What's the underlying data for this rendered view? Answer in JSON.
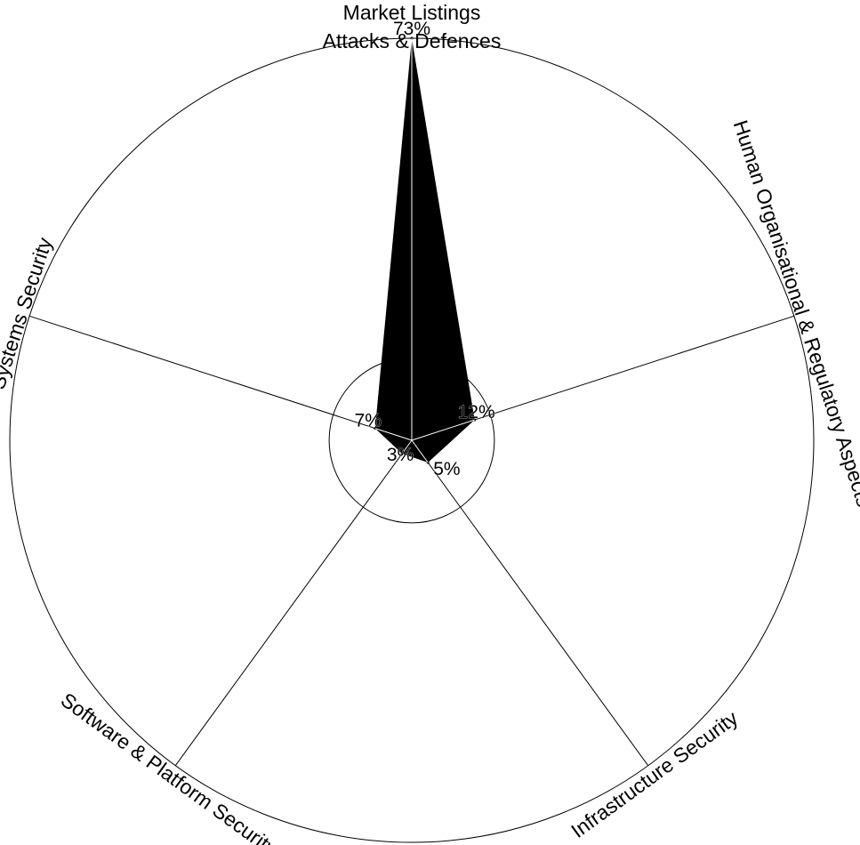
{
  "chart_data": {
    "type": "radar",
    "title_lines": [
      "Market Listings",
      "Attacks & Defences"
    ],
    "categories": [
      "Attacks & Defences",
      "Human Organisational & Regulatory Aspects",
      "Infrastructure Security",
      "Software & Platform Security",
      "Systems Security"
    ],
    "series": [
      {
        "values": [
          73,
          12,
          5,
          3,
          7
        ],
        "labels": [
          "73%",
          "12%",
          "5%",
          "3%",
          "7%"
        ]
      }
    ],
    "rlim": [
      0,
      73
    ],
    "inner_ring_value": 15,
    "colors": {
      "fill": "#000000",
      "lines": "#000000",
      "background": "#ffffff"
    }
  }
}
